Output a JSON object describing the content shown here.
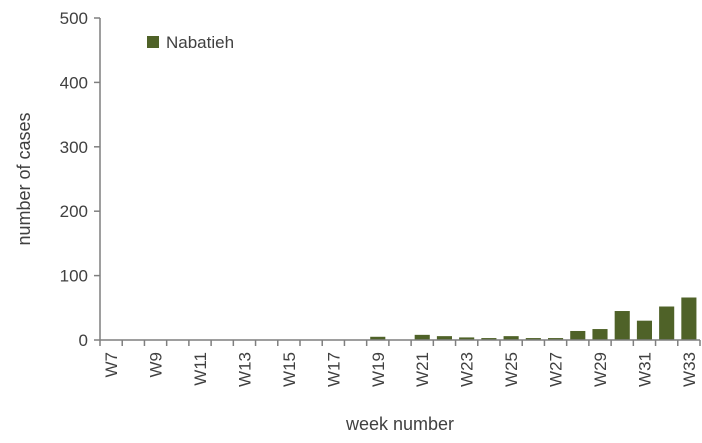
{
  "chart_data": {
    "type": "bar",
    "title": "",
    "xlabel": "week number",
    "ylabel": "number of cases",
    "ylim": [
      0,
      500
    ],
    "yticks": [
      0,
      100,
      200,
      300,
      400,
      500
    ],
    "categories": [
      "W7",
      "W8",
      "W9",
      "W10",
      "W11",
      "W12",
      "W13",
      "W14",
      "W15",
      "W16",
      "W17",
      "W18",
      "W19",
      "W20",
      "W21",
      "W22",
      "W23",
      "W24",
      "W25",
      "W26",
      "W27",
      "W28",
      "W29",
      "W30",
      "W31",
      "W32",
      "W33"
    ],
    "xtick_labels": [
      "W7",
      "W9",
      "W11",
      "W13",
      "W15",
      "W17",
      "W19",
      "W21",
      "W23",
      "W25",
      "W27",
      "W29",
      "W31",
      "W33"
    ],
    "series": [
      {
        "name": "Nabatieh",
        "color": "#4f6228",
        "values": [
          0,
          0,
          0,
          0,
          0,
          0,
          0,
          0,
          0,
          0,
          0,
          0,
          5,
          0,
          8,
          6,
          4,
          3,
          6,
          3,
          3,
          14,
          17,
          45,
          30,
          52,
          66
        ]
      }
    ],
    "legend": "top-left",
    "grid": false
  }
}
